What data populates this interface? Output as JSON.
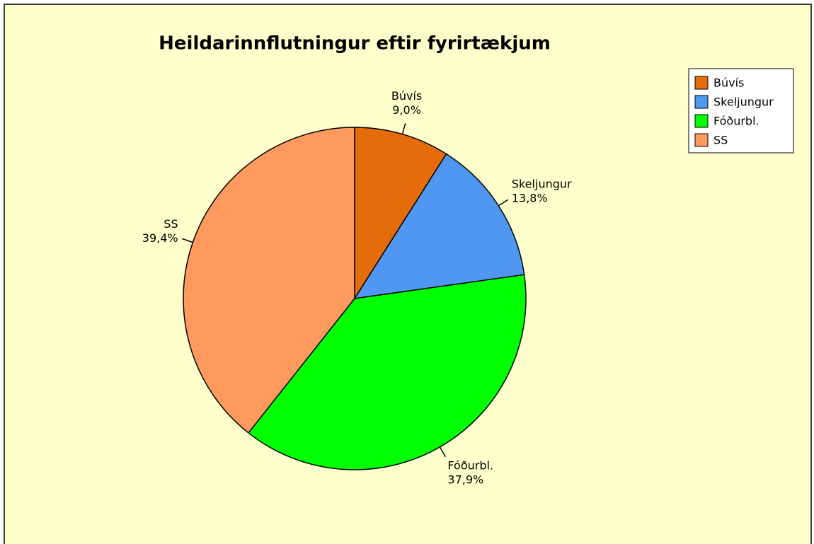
{
  "chart_data": {
    "type": "pie",
    "title": "Heildarinnflutningur eftir fyrirtækjum",
    "categories": [
      "Búvís",
      "Skeljungur",
      "Fóðurbl.",
      "SS"
    ],
    "values": [
      9.0,
      13.8,
      37.9,
      39.4
    ],
    "value_labels": [
      "9,0%",
      "13,8%",
      "37,9%",
      "39,4%"
    ],
    "colors": [
      "#e46c0a",
      "#4f97f0",
      "#00ff00",
      "#ff9a5e"
    ]
  }
}
